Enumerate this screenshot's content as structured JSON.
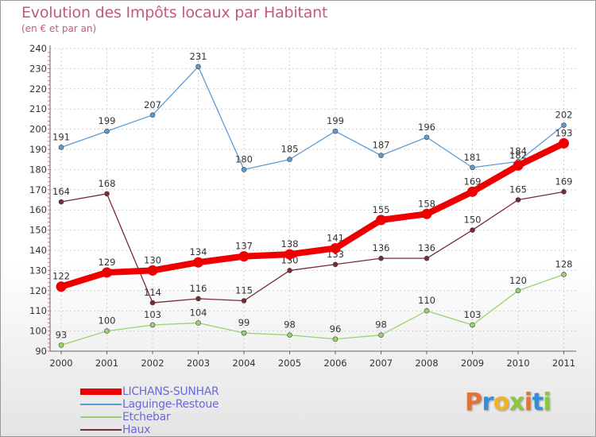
{
  "header": {
    "title": "Evolution des Impôts locaux par Habitant",
    "subtitle": "(en € et par an)"
  },
  "brand": {
    "letters": [
      "P",
      "r",
      "o",
      "x",
      "i",
      "t",
      "i"
    ],
    "colors": [
      "#e2733a",
      "#2f8fd8",
      "#f0b323",
      "#8dc63f",
      "#e2733a",
      "#2f8fd8",
      "#8dc63f"
    ]
  },
  "chart_data": {
    "type": "line",
    "categories": [
      "2000",
      "2001",
      "2002",
      "2003",
      "2004",
      "2005",
      "2006",
      "2007",
      "2008",
      "2009",
      "2010",
      "2011"
    ],
    "ylim": [
      90,
      240
    ],
    "yticks": [
      90,
      100,
      110,
      120,
      130,
      140,
      150,
      160,
      170,
      180,
      190,
      200,
      210,
      220,
      230,
      240
    ],
    "grid": true,
    "legend_position": "bottom-left",
    "series": [
      {
        "name": "Laguinge-Restoue",
        "color": "#5b9bd5",
        "values": [
          191,
          199,
          207,
          231,
          180,
          185,
          199,
          187,
          196,
          181,
          184,
          202
        ]
      },
      {
        "name": "Haux",
        "color": "#7a2a33",
        "values": [
          164,
          168,
          114,
          116,
          115,
          130,
          133,
          136,
          136,
          150,
          165,
          169
        ]
      },
      {
        "name": "Etchebar",
        "color": "#99d36e",
        "values": [
          93,
          100,
          103,
          104,
          99,
          98,
          96,
          98,
          110,
          103,
          120,
          128
        ]
      },
      {
        "name": "LICHANS-SUNHAR",
        "color": "#ee0000",
        "values": [
          122,
          129,
          130,
          134,
          137,
          138,
          141,
          155,
          158,
          169,
          182,
          193
        ]
      }
    ],
    "legend_order": [
      "LICHANS-SUNHAR",
      "Laguinge-Restoue",
      "Etchebar",
      "Haux"
    ]
  }
}
